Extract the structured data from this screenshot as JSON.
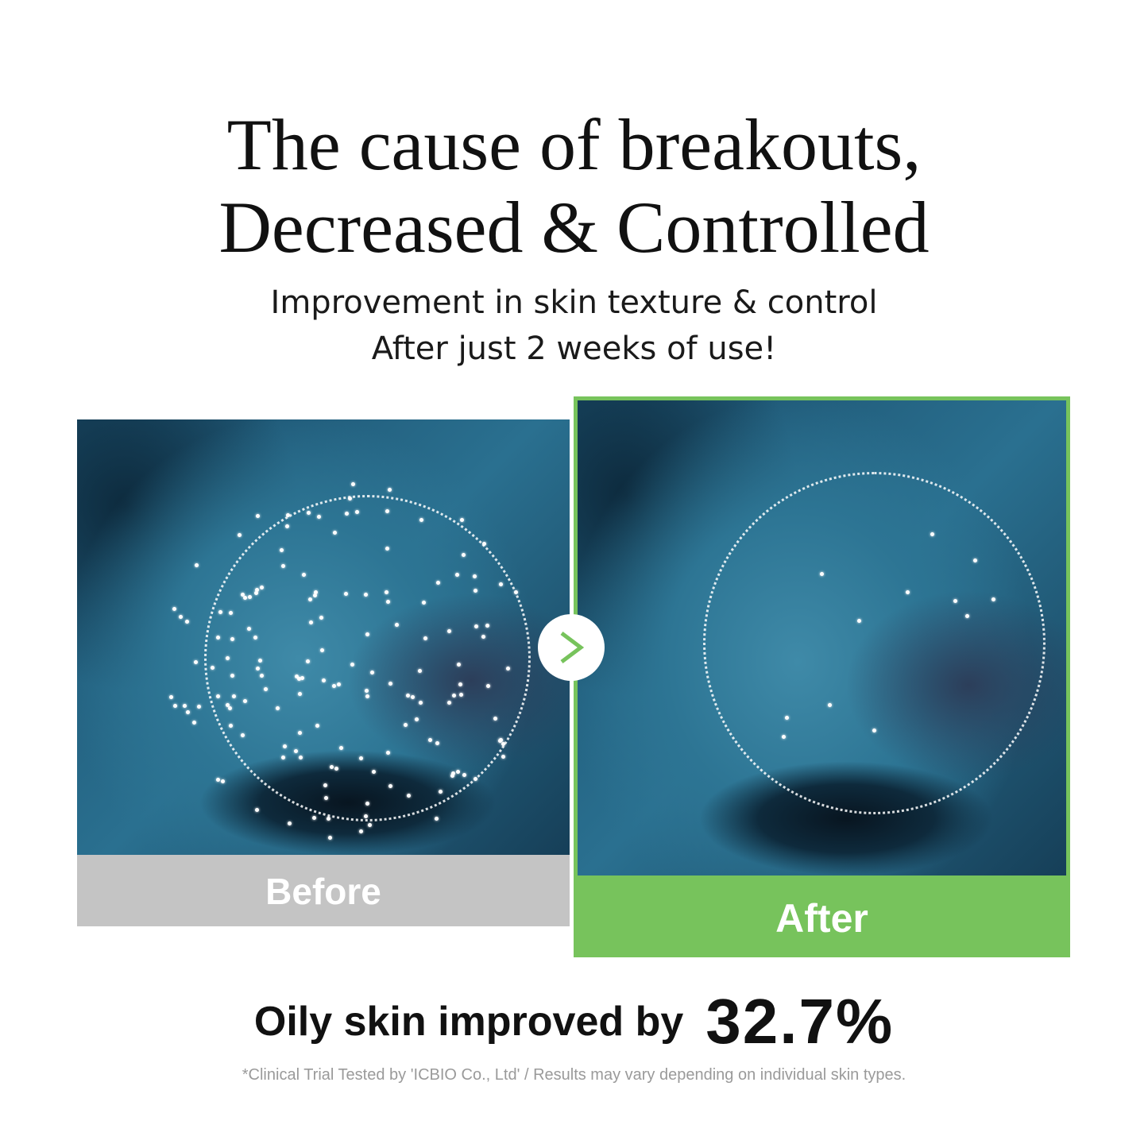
{
  "headline": {
    "line1": "The cause of breakouts,",
    "line2": "Decreased & Controlled"
  },
  "subheadline": {
    "line1": "Improvement in  skin texture & control",
    "line2": "After just 2 weeks of use!"
  },
  "comparison": {
    "before_label": "Before",
    "after_label": "After",
    "arrow_icon": "chevron-right-icon",
    "colors": {
      "before_bar": "#c4c4c4",
      "after_bar": "#77c35c",
      "arrow": "#77c35c"
    }
  },
  "result": {
    "label": "Oily skin improved by",
    "value": "32.7%"
  },
  "footnote": "*Clinical Trial Tested by 'ICBIO Co., Ltd' / Results may vary depending on individual skin types."
}
